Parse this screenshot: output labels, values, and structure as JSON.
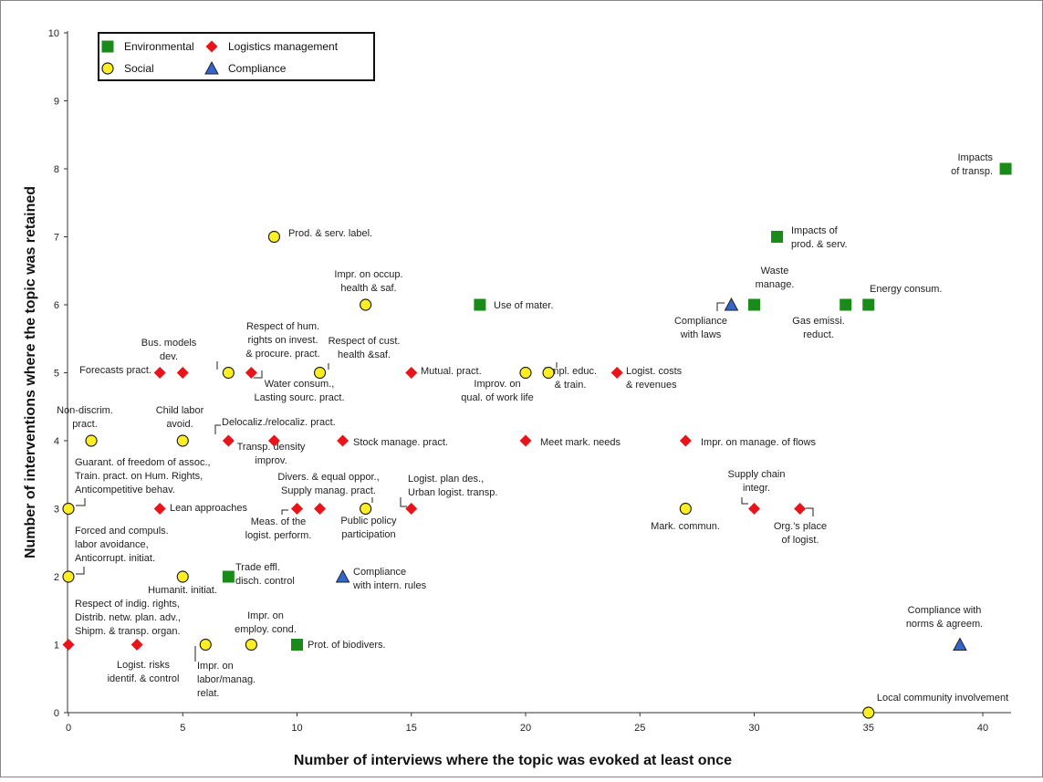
{
  "chart_data": {
    "type": "scatter",
    "xlabel": "Number of interviews where the topic was evoked at least once",
    "ylabel": "Number of interventions where the topic was retained",
    "xlim": [
      0,
      43
    ],
    "ylim": [
      0,
      10
    ],
    "xticks": [
      "0",
      "5",
      "10",
      "15",
      "20",
      "25",
      "30",
      "35",
      "40"
    ],
    "yticks": [
      "0",
      "1",
      "2",
      "3",
      "4",
      "5",
      "6",
      "7",
      "8",
      "9",
      "10"
    ],
    "grid": false,
    "legend_position": "top-left",
    "series_styles": {
      "environmental": {
        "marker": "square",
        "color": "#1a8a1a"
      },
      "logistics": {
        "marker": "diamond",
        "color": "#e8141a"
      },
      "social": {
        "marker": "circle",
        "color": "#ffee22"
      },
      "compliance": {
        "marker": "triangle",
        "color": "#3366cc"
      }
    },
    "legend": [
      {
        "key": "environmental",
        "name": "Environmental"
      },
      {
        "key": "logistics",
        "name": "Logistics management"
      },
      {
        "key": "social",
        "name": "Social"
      },
      {
        "key": "compliance",
        "name": "Compliance"
      }
    ],
    "points": [
      {
        "x": 41,
        "y": 8,
        "s": "environmental",
        "label": [
          "Impacts",
          "of transp."
        ]
      },
      {
        "x": 31,
        "y": 7,
        "s": "environmental",
        "label": [
          "Impacts of",
          "prod. & serv."
        ]
      },
      {
        "x": 30,
        "y": 6,
        "s": "environmental",
        "label": [
          "Waste",
          "manage."
        ]
      },
      {
        "x": 35,
        "y": 6,
        "s": "environmental",
        "label": [
          "Energy consum."
        ]
      },
      {
        "x": 34,
        "y": 6,
        "s": "environmental",
        "label": [
          "Gas emissi.",
          "reduct."
        ]
      },
      {
        "x": 18,
        "y": 6,
        "s": "environmental",
        "label": [
          "Use of mater."
        ]
      },
      {
        "x": 7,
        "y": 2,
        "s": "environmental",
        "label": [
          "Trade effl.",
          "disch. control"
        ]
      },
      {
        "x": 10,
        "y": 1,
        "s": "environmental",
        "label": [
          "Prot. of biodivers."
        ]
      },
      {
        "x": 4,
        "y": 5,
        "s": "logistics",
        "label": [
          "Forecasts pract."
        ]
      },
      {
        "x": 5,
        "y": 5,
        "s": "logistics",
        "label": [
          "Bus. models",
          "dev."
        ]
      },
      {
        "x": 8,
        "y": 5,
        "s": "logistics",
        "label": [
          "Water consum.,",
          "Lasting sourc. pract."
        ]
      },
      {
        "x": 15,
        "y": 5,
        "s": "logistics",
        "label": [
          "Mutual. pract."
        ]
      },
      {
        "x": 24,
        "y": 5,
        "s": "logistics",
        "label": [
          "Logist. costs",
          "& revenues"
        ]
      },
      {
        "x": 7,
        "y": 4,
        "s": "logistics",
        "label": [
          "Delocaliz./relocaliz. pract."
        ]
      },
      {
        "x": 9,
        "y": 4,
        "s": "logistics",
        "label": [
          "Transp. density",
          "improv."
        ]
      },
      {
        "x": 12,
        "y": 4,
        "s": "logistics",
        "label": [
          "Stock manage. pract."
        ]
      },
      {
        "x": 20,
        "y": 4,
        "s": "logistics",
        "label": [
          "Meet mark. needs"
        ]
      },
      {
        "x": 27,
        "y": 4,
        "s": "logistics",
        "label": [
          "Impr. on manage. of flows"
        ]
      },
      {
        "x": 4,
        "y": 3,
        "s": "logistics",
        "label": [
          "Lean approaches"
        ]
      },
      {
        "x": 10,
        "y": 3,
        "s": "logistics",
        "label": [
          "Meas. of the",
          "logist. perform."
        ]
      },
      {
        "x": 11,
        "y": 3,
        "s": "logistics",
        "label": [
          "Divers. & equal oppor.,",
          "Supply manag. pract."
        ]
      },
      {
        "x": 15,
        "y": 3,
        "s": "logistics",
        "label": [
          "Logist. plan des.,",
          "Urban logist. transp."
        ]
      },
      {
        "x": 30,
        "y": 3,
        "s": "logistics",
        "label": [
          "Supply chain",
          "integr."
        ]
      },
      {
        "x": 32,
        "y": 3,
        "s": "logistics",
        "label": [
          "Org.'s place",
          "of logist."
        ]
      },
      {
        "x": 0,
        "y": 1,
        "s": "logistics",
        "label": [
          "Respect of indig. rights,",
          "Distrib. netw. plan. adv.,",
          "Shipm. & transp. organ."
        ]
      },
      {
        "x": 3,
        "y": 1,
        "s": "logistics",
        "label": [
          "Logist. risks",
          "identif. & control"
        ]
      },
      {
        "x": 9,
        "y": 7,
        "s": "social",
        "label": [
          "Prod. & serv. label."
        ]
      },
      {
        "x": 13,
        "y": 6,
        "s": "social",
        "label": [
          "Impr. on occup.",
          "health & saf."
        ]
      },
      {
        "x": 7,
        "y": 5,
        "s": "social",
        "label": [
          "Respect of hum.",
          "rights on invest.",
          "& procure. pract."
        ]
      },
      {
        "x": 11,
        "y": 5,
        "s": "social",
        "label": [
          "Respect of cust.",
          "health &saf."
        ]
      },
      {
        "x": 20,
        "y": 5,
        "s": "social",
        "label": [
          "Improv. on",
          "qual. of work life"
        ]
      },
      {
        "x": 21,
        "y": 5,
        "s": "social",
        "label": [
          "Empl. educ.",
          "& train."
        ]
      },
      {
        "x": 1,
        "y": 4,
        "s": "social",
        "label": [
          "Non-discrim.",
          "pract."
        ]
      },
      {
        "x": 5,
        "y": 4,
        "s": "social",
        "label": [
          "Child labor",
          "avoid."
        ]
      },
      {
        "x": 0,
        "y": 3,
        "s": "social",
        "label": [
          "Guarant. of freedom of assoc.,",
          "Train. pract. on Hum. Rights,",
          "Anticompetitive behav."
        ]
      },
      {
        "x": 13,
        "y": 3,
        "s": "social",
        "label": [
          "Public policy",
          "participation"
        ]
      },
      {
        "x": 27,
        "y": 3,
        "s": "social",
        "label": [
          "Mark. commun."
        ]
      },
      {
        "x": 0,
        "y": 2,
        "s": "social",
        "label": [
          "Forced and compuls.",
          "labor avoidance,",
          "Anticorrupt. initiat."
        ]
      },
      {
        "x": 5,
        "y": 2,
        "s": "social",
        "label": [
          "Humanit. initiat."
        ]
      },
      {
        "x": 6,
        "y": 1,
        "s": "social",
        "label": [
          "Impr. on",
          "labor/manag.",
          "relat."
        ]
      },
      {
        "x": 8,
        "y": 1,
        "s": "social",
        "label": [
          "Impr. on",
          "employ. cond."
        ]
      },
      {
        "x": 35,
        "y": 0,
        "s": "social",
        "label": [
          "Local community involvement"
        ]
      },
      {
        "x": 29,
        "y": 6,
        "s": "compliance",
        "label": [
          "Compliance",
          "with laws"
        ]
      },
      {
        "x": 12,
        "y": 2,
        "s": "compliance",
        "label": [
          "Compliance",
          "with intern. rules"
        ]
      },
      {
        "x": 39,
        "y": 1,
        "s": "compliance",
        "label": [
          "Compliance with",
          "norms & agreem."
        ]
      }
    ]
  }
}
